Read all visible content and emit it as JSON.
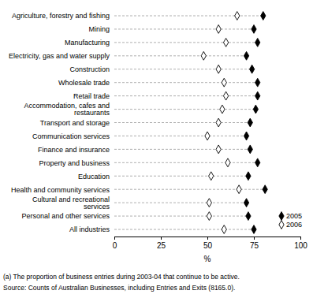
{
  "chart_data": {
    "type": "dot",
    "orientation": "horizontal",
    "categories": [
      "Agriculture, forestry and fishing",
      "Mining",
      "Manufacturing",
      "Electricity, gas and water supply",
      "Construction",
      "Wholesale trade",
      "Retail trade",
      "Accommodation, cafes and restaurants",
      "Transport and storage",
      "Communication services",
      "Finance and insurance",
      "Property and business",
      "Education",
      "Health and community services",
      "Cultural and recreational services",
      "Personal and other services",
      "All industries"
    ],
    "series": [
      {
        "name": "2005",
        "color": "#000000",
        "marker": "diamond",
        "values": [
          80,
          75,
          77,
          71,
          74,
          77,
          77,
          76,
          73,
          71,
          73,
          77,
          72,
          81,
          71,
          72,
          75
        ]
      },
      {
        "name": "2006",
        "color": "#000000",
        "marker": "diamond-open",
        "values": [
          66,
          56,
          60,
          48,
          56,
          59,
          60,
          58,
          56,
          50,
          56,
          61,
          52,
          67,
          51,
          51,
          59
        ]
      }
    ],
    "xlabel": "%",
    "xlim": [
      0,
      100
    ],
    "xticks": [
      0,
      25,
      50,
      75,
      100
    ],
    "legend": "bottom-right",
    "annotations": [
      "(a) The proportion of business entries during 2003-04 that continue to be active.",
      "Source: Counts of Australian Businesses, including Entries and Exits (8165.0)."
    ]
  }
}
